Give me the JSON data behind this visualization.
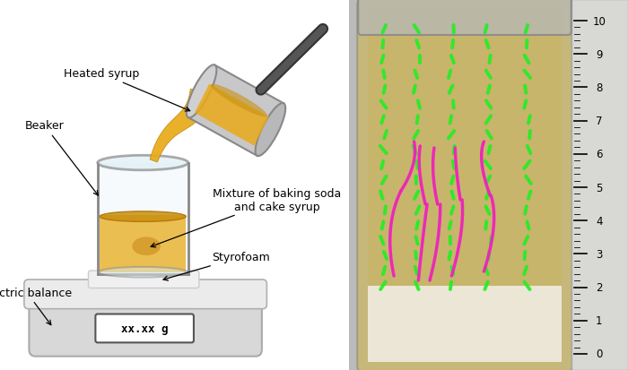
{
  "background_color": "#ffffff",
  "syrup_color": "#e8aa18",
  "syrup_fill_color": "#dda010",
  "beaker_edge": "#aaaaaa",
  "pan_color": "#c8c8ca",
  "pan_edge": "#888888",
  "balance_light": "#e0e0e0",
  "balance_dark": "#c0c0c0",
  "display_text": "xx.xx g",
  "labels": {
    "heated_syrup": "Heated syrup",
    "beaker": "Beaker",
    "electric_balance": "Electric balance",
    "mixture": "Mixture of baking soda\nand cake syrup",
    "styrofoam": "Styrofoam"
  },
  "green_color": "#22ee22",
  "pink_color": "#ee22bb"
}
